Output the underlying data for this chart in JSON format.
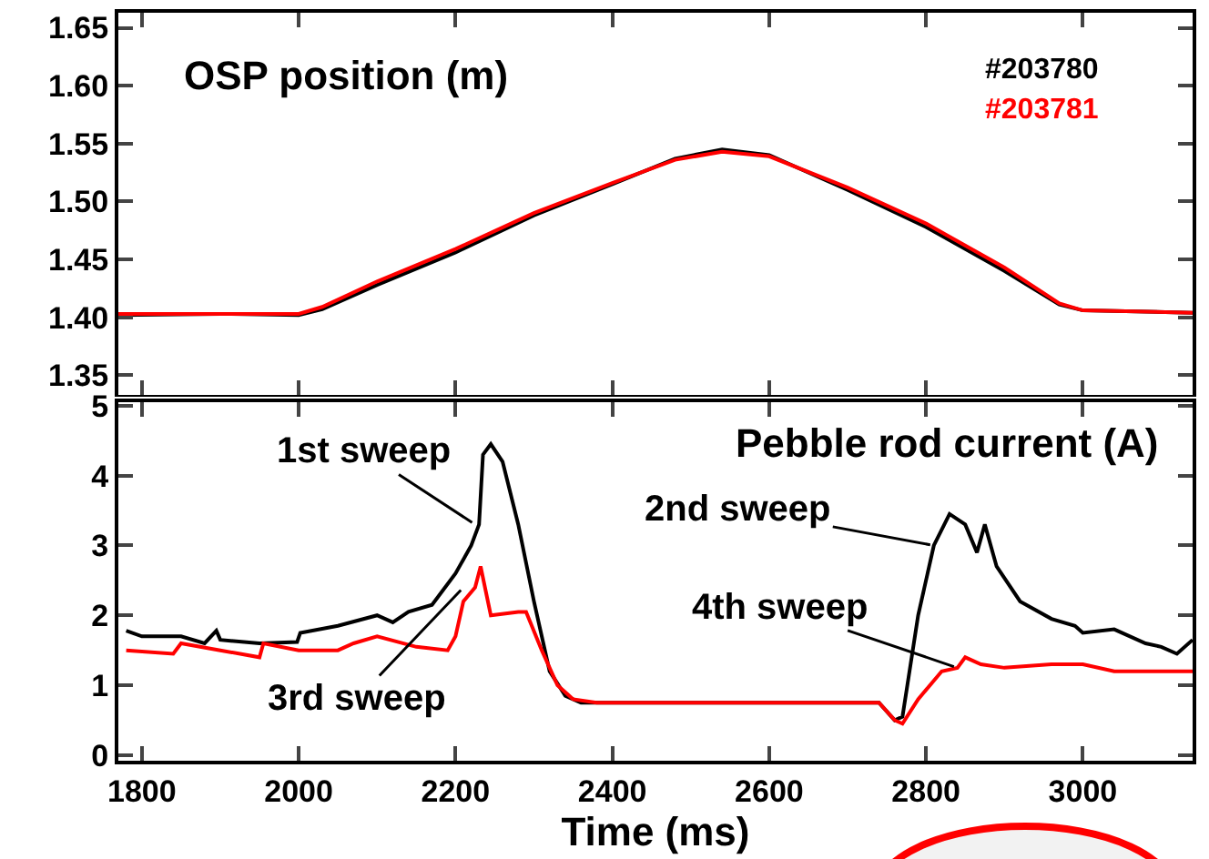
{
  "chart_data": [
    {
      "type": "line",
      "title": "OSP position (m)",
      "tick_labels": "y",
      "xlim": [
        1770,
        3140
      ],
      "xticks": [
        1800,
        2000,
        2200,
        2400,
        2600,
        2800,
        3000
      ],
      "ylim": [
        1.333,
        1.663
      ],
      "yticks": [
        {
          "value": 1.35,
          "label": "1.35"
        },
        {
          "value": 1.4,
          "label": "1.40"
        },
        {
          "value": 1.45,
          "label": "1.45"
        },
        {
          "value": 1.5,
          "label": "1.50"
        },
        {
          "value": 1.55,
          "label": "1.55"
        },
        {
          "value": 1.6,
          "label": "1.60"
        },
        {
          "value": 1.65,
          "label": "1.65"
        }
      ],
      "series": [
        {
          "name": "#203780",
          "color": "#000000",
          "x": [
            1770,
            1900,
            2000,
            2030,
            2100,
            2200,
            2300,
            2400,
            2480,
            2540,
            2600,
            2700,
            2800,
            2900,
            2970,
            3000,
            3140
          ],
          "values": [
            1.402,
            1.403,
            1.402,
            1.407,
            1.428,
            1.456,
            1.488,
            1.515,
            1.537,
            1.545,
            1.54,
            1.51,
            1.478,
            1.44,
            1.411,
            1.406,
            1.404
          ]
        },
        {
          "name": "#203781",
          "color": "#ff0000",
          "x": [
            1770,
            1900,
            2000,
            2030,
            2100,
            2200,
            2300,
            2400,
            2480,
            2540,
            2600,
            2700,
            2800,
            2900,
            2970,
            3000,
            3140
          ],
          "values": [
            1.403,
            1.403,
            1.403,
            1.409,
            1.431,
            1.459,
            1.49,
            1.516,
            1.536,
            1.543,
            1.539,
            1.512,
            1.481,
            1.443,
            1.412,
            1.406,
            1.404
          ]
        }
      ]
    },
    {
      "type": "line",
      "title": "Pebble rod current (A)",
      "xlabel": "Time (ms)",
      "xlim": [
        1770,
        3140
      ],
      "xticks": [
        1800,
        2000,
        2200,
        2400,
        2600,
        2800,
        3000
      ],
      "ylim": [
        -0.08,
        5.05
      ],
      "yticks": [
        0,
        1,
        2,
        3,
        4,
        5
      ],
      "series": [
        {
          "color": "#000000",
          "x": [
            1780,
            1800,
            1850,
            1880,
            1895,
            1900,
            1950,
            1998,
            2002,
            2050,
            2100,
            2120,
            2140,
            2170,
            2200,
            2220,
            2230,
            2235,
            2245,
            2260,
            2280,
            2300,
            2320,
            2340,
            2360,
            2740,
            2760,
            2770,
            2790,
            2810,
            2830,
            2850,
            2865,
            2875,
            2890,
            2920,
            2960,
            2990,
            3000,
            3040,
            3080,
            3100,
            3120,
            3140
          ],
          "values": [
            1.78,
            1.7,
            1.7,
            1.6,
            1.78,
            1.65,
            1.6,
            1.62,
            1.75,
            1.85,
            2.0,
            1.9,
            2.05,
            2.15,
            2.6,
            3.0,
            3.3,
            4.3,
            4.45,
            4.2,
            3.3,
            2.2,
            1.2,
            0.85,
            0.75,
            0.75,
            0.5,
            0.55,
            2.0,
            3.0,
            3.45,
            3.3,
            2.9,
            3.3,
            2.7,
            2.2,
            1.95,
            1.85,
            1.75,
            1.8,
            1.6,
            1.55,
            1.45,
            1.65
          ]
        },
        {
          "color": "#ff0000",
          "x": [
            1780,
            1840,
            1850,
            1900,
            1950,
            1955,
            2000,
            2050,
            2070,
            2100,
            2150,
            2190,
            2200,
            2210,
            2225,
            2232,
            2245,
            2280,
            2290,
            2310,
            2330,
            2350,
            2380,
            2740,
            2760,
            2770,
            2790,
            2820,
            2840,
            2850,
            2870,
            2900,
            2960,
            3000,
            3040,
            3080,
            3140
          ],
          "values": [
            1.5,
            1.45,
            1.6,
            1.5,
            1.4,
            1.6,
            1.5,
            1.5,
            1.6,
            1.7,
            1.55,
            1.5,
            1.7,
            2.2,
            2.4,
            2.7,
            2.0,
            2.05,
            2.05,
            1.5,
            1.0,
            0.8,
            0.75,
            0.75,
            0.5,
            0.45,
            0.8,
            1.2,
            1.25,
            1.4,
            1.3,
            1.25,
            1.3,
            1.3,
            1.2,
            1.2,
            1.2
          ]
        }
      ],
      "annotations": [
        {
          "text": "1st sweep",
          "x": 2225,
          "y": 3.3
        },
        {
          "text": "3rd sweep",
          "x": 2210,
          "y": 2.4
        },
        {
          "text": "2nd sweep",
          "x": 2810,
          "y": 3.0
        },
        {
          "text": "4th sweep",
          "x": 2840,
          "y": 1.25
        }
      ]
    }
  ]
}
